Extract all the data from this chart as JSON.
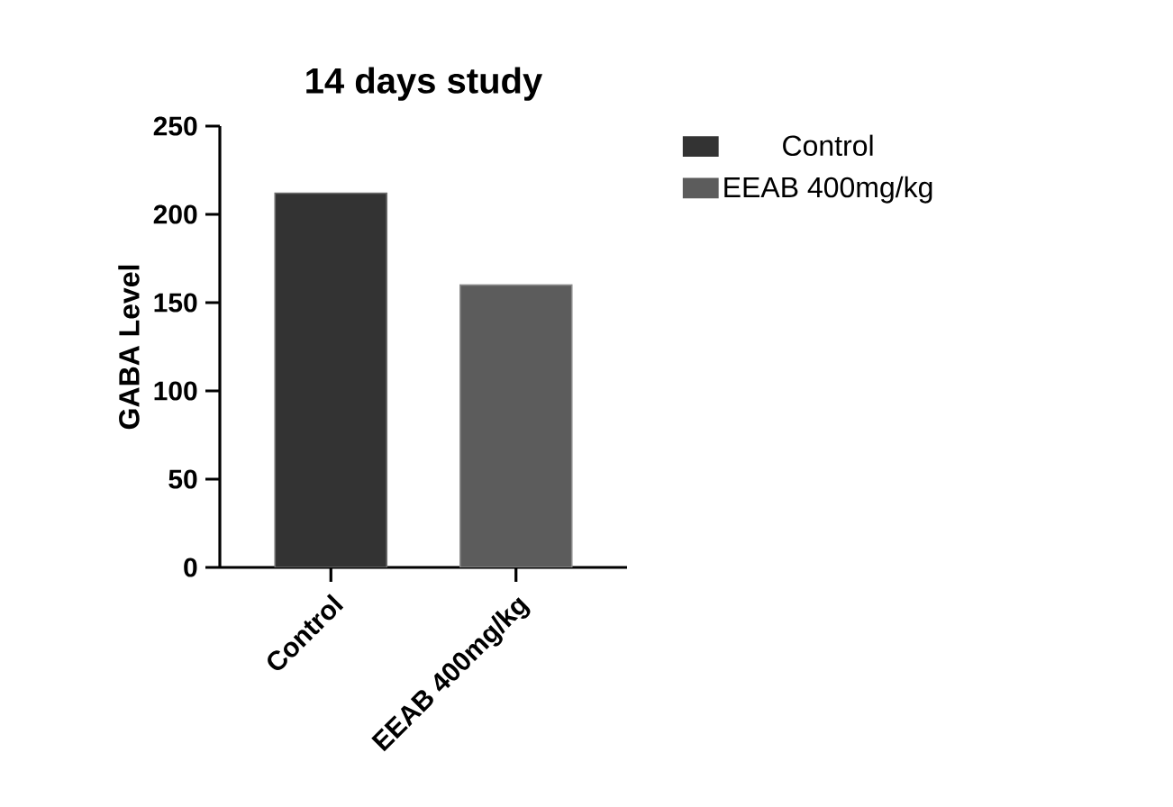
{
  "chart_data": {
    "type": "bar",
    "title": "14 days study",
    "ylabel": "GABA Level",
    "categories": [
      "Control",
      "EEAB 400mg/kg"
    ],
    "series": [
      {
        "name": "Control",
        "color": "#333333",
        "values": [
          212,
          null
        ]
      },
      {
        "name": "EEAB 400mg/kg",
        "color": "#5c5c5c",
        "values": [
          null,
          160
        ]
      }
    ],
    "ylim": [
      0,
      250
    ],
    "yticks": [
      0,
      50,
      100,
      150,
      200,
      250
    ],
    "legend": "right",
    "grid": false
  }
}
